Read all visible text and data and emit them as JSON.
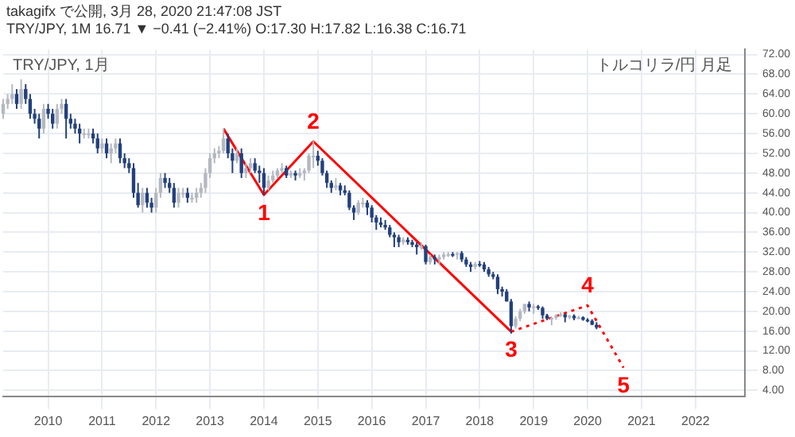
{
  "chart_data": {
    "type": "candlestick",
    "title": "takagifx で公開, 3月 28, 2020 21:47:08 JST",
    "subtitle": "TRY/JPY, 1M 16.71 ▼ −0.41 (−2.41%) O:17.30 H:17.82 L:16.38 C:16.71",
    "x": [
      "2009-03",
      "2009-04",
      "2009-05",
      "2009-06",
      "2009-07",
      "2009-08",
      "2009-09",
      "2009-10",
      "2009-11",
      "2009-12",
      "2010-01",
      "2010-02",
      "2010-03",
      "2010-04",
      "2010-05",
      "2010-06",
      "2010-07",
      "2010-08",
      "2010-09",
      "2010-10",
      "2010-11",
      "2010-12",
      "2011-01",
      "2011-02",
      "2011-03",
      "2011-04",
      "2011-05",
      "2011-06",
      "2011-07",
      "2011-08",
      "2011-09",
      "2011-10",
      "2011-11",
      "2011-12",
      "2012-01",
      "2012-02",
      "2012-03",
      "2012-04",
      "2012-05",
      "2012-06",
      "2012-07",
      "2012-08",
      "2012-09",
      "2012-10",
      "2012-11",
      "2012-12",
      "2013-01",
      "2013-02",
      "2013-03",
      "2013-04",
      "2013-05",
      "2013-06",
      "2013-07",
      "2013-08",
      "2013-09",
      "2013-10",
      "2013-11",
      "2013-12",
      "2014-01",
      "2014-02",
      "2014-03",
      "2014-04",
      "2014-05",
      "2014-06",
      "2014-07",
      "2014-08",
      "2014-09",
      "2014-10",
      "2014-11",
      "2014-12",
      "2015-01",
      "2015-02",
      "2015-03",
      "2015-04",
      "2015-05",
      "2015-06",
      "2015-07",
      "2015-08",
      "2015-09",
      "2015-10",
      "2015-11",
      "2015-12",
      "2016-01",
      "2016-02",
      "2016-03",
      "2016-04",
      "2016-05",
      "2016-06",
      "2016-07",
      "2016-08",
      "2016-09",
      "2016-10",
      "2016-11",
      "2016-12",
      "2017-01",
      "2017-02",
      "2017-03",
      "2017-04",
      "2017-05",
      "2017-06",
      "2017-07",
      "2017-08",
      "2017-09",
      "2017-10",
      "2017-11",
      "2017-12",
      "2018-01",
      "2018-02",
      "2018-03",
      "2018-04",
      "2018-05",
      "2018-06",
      "2018-07",
      "2018-08",
      "2018-09",
      "2018-10",
      "2018-11",
      "2018-12",
      "2019-01",
      "2019-02",
      "2019-03",
      "2019-04",
      "2019-05",
      "2019-06",
      "2019-07",
      "2019-08",
      "2019-09",
      "2019-10",
      "2019-11",
      "2019-12",
      "2020-01",
      "2020-02",
      "2020-03"
    ],
    "ohlc": [
      [
        60,
        63,
        59,
        62
      ],
      [
        62,
        64,
        61,
        63
      ],
      [
        63,
        66,
        62,
        64
      ],
      [
        64,
        65,
        61,
        62
      ],
      [
        62,
        67,
        61,
        65
      ],
      [
        65,
        66,
        62,
        63
      ],
      [
        63,
        64,
        59,
        60
      ],
      [
        60,
        61,
        58,
        59
      ],
      [
        59,
        60,
        55,
        57
      ],
      [
        57,
        62,
        56,
        61
      ],
      [
        61,
        62,
        59,
        60
      ],
      [
        60,
        61,
        57,
        58
      ],
      [
        58,
        62,
        57,
        61
      ],
      [
        61,
        63,
        60,
        62
      ],
      [
        62,
        63,
        55,
        59
      ],
      [
        59,
        60,
        57,
        58
      ],
      [
        58,
        59,
        56,
        57
      ],
      [
        57,
        58,
        54,
        56
      ],
      [
        56,
        57,
        55,
        56
      ],
      [
        56,
        57,
        55,
        56
      ],
      [
        56,
        57,
        54,
        55
      ],
      [
        55,
        56,
        52,
        53
      ],
      [
        53,
        55,
        52,
        54
      ],
      [
        54,
        55,
        51,
        52
      ],
      [
        52,
        54,
        50,
        53
      ],
      [
        53,
        55,
        52,
        54
      ],
      [
        54,
        55,
        50,
        51
      ],
      [
        51,
        52,
        49,
        50
      ],
      [
        50,
        51,
        48,
        49
      ],
      [
        49,
        50,
        43,
        44
      ],
      [
        44,
        46,
        41,
        41.5
      ],
      [
        41.5,
        45,
        40,
        44
      ],
      [
        44,
        45,
        41,
        42
      ],
      [
        42,
        43,
        40,
        41
      ],
      [
        41,
        45,
        40,
        44
      ],
      [
        44,
        48,
        43,
        47
      ],
      [
        47,
        48,
        45,
        46
      ],
      [
        46,
        47,
        44,
        45
      ],
      [
        45,
        46,
        41,
        42
      ],
      [
        42,
        45,
        41,
        44
      ],
      [
        44,
        45,
        43,
        44
      ],
      [
        44,
        45,
        42,
        43
      ],
      [
        43,
        44,
        42,
        43
      ],
      [
        43,
        45,
        42,
        44
      ],
      [
        44,
        46,
        43,
        45
      ],
      [
        45,
        49,
        44,
        48
      ],
      [
        48,
        52,
        47,
        51
      ],
      [
        51,
        53,
        50,
        52
      ],
      [
        52,
        53.5,
        51,
        52.5
      ],
      [
        52.5,
        57,
        52,
        55
      ],
      [
        55,
        56,
        51,
        52
      ],
      [
        52,
        53,
        48,
        50.5
      ],
      [
        50.5,
        53,
        50,
        52
      ],
      [
        52,
        53,
        47,
        48
      ],
      [
        48,
        50,
        47,
        49
      ],
      [
        49,
        51,
        48,
        50
      ],
      [
        50,
        51,
        48,
        48.5
      ],
      [
        48.5,
        49.5,
        46,
        48
      ],
      [
        48,
        49,
        43.5,
        45
      ],
      [
        45,
        47.5,
        44.5,
        46.5
      ],
      [
        46.5,
        48.5,
        46,
        47.5
      ],
      [
        47.5,
        49,
        47,
        48.5
      ],
      [
        48.5,
        50,
        48,
        49
      ],
      [
        49,
        49.5,
        47,
        47.5
      ],
      [
        47.5,
        48.5,
        47,
        48
      ],
      [
        48,
        48.5,
        46.5,
        47.5
      ],
      [
        47.5,
        49,
        47,
        48
      ],
      [
        48,
        49,
        46.5,
        48.5
      ],
      [
        48.5,
        52,
        48,
        51.5
      ],
      [
        51.5,
        54.5,
        49,
        51.5
      ],
      [
        51.5,
        52.5,
        49.5,
        50.5
      ],
      [
        50.5,
        51,
        47.5,
        48
      ],
      [
        48,
        48.5,
        45,
        46
      ],
      [
        46,
        46.5,
        44,
        45
      ],
      [
        45,
        47,
        44.5,
        45.5
      ],
      [
        45.5,
        46,
        43.5,
        44.5
      ],
      [
        44.5,
        45.5,
        43.5,
        44
      ],
      [
        44,
        44.5,
        40.5,
        41
      ],
      [
        41,
        41.5,
        38.5,
        40
      ],
      [
        40,
        42.5,
        39.5,
        42
      ],
      [
        42,
        43,
        41,
        42
      ],
      [
        42,
        42.5,
        39.5,
        41
      ],
      [
        41,
        41.5,
        38,
        39
      ],
      [
        39,
        39.5,
        36.5,
        38
      ],
      [
        38,
        39,
        37,
        37.5
      ],
      [
        37.5,
        38.5,
        36.5,
        37
      ],
      [
        37,
        37.5,
        35,
        35.5
      ],
      [
        35.5,
        36,
        33,
        35
      ],
      [
        35,
        35.5,
        33,
        34
      ],
      [
        34,
        35,
        33.5,
        34.5
      ],
      [
        34.5,
        35,
        33.5,
        34
      ],
      [
        34,
        34.5,
        33,
        33.5
      ],
      [
        33.5,
        34,
        31.5,
        33
      ],
      [
        33,
        34,
        32.5,
        33.2
      ],
      [
        33.2,
        33.5,
        29.5,
        30
      ],
      [
        30,
        31.5,
        29.5,
        31
      ],
      [
        31,
        31.5,
        29.5,
        30.5
      ],
      [
        30.5,
        31.5,
        29.5,
        31
      ],
      [
        31,
        32,
        30.5,
        31.5
      ],
      [
        31.5,
        32,
        31,
        31.6
      ],
      [
        31.6,
        32,
        31,
        31.5
      ],
      [
        31.5,
        32,
        30.5,
        31.8
      ],
      [
        31.8,
        32.2,
        30,
        30.5
      ],
      [
        30.5,
        31,
        29,
        29.5
      ],
      [
        29.5,
        30,
        28,
        29
      ],
      [
        29,
        30,
        28.5,
        29.6
      ],
      [
        29.6,
        30.2,
        29,
        29.5
      ],
      [
        29.5,
        30,
        28,
        28.5
      ],
      [
        28.5,
        29,
        27,
        27.5
      ],
      [
        27.5,
        28,
        26.5,
        27
      ],
      [
        27,
        27.5,
        23.5,
        24.5
      ],
      [
        24.5,
        25,
        23,
        24
      ],
      [
        24,
        24.5,
        22,
        22
      ],
      [
        22,
        22.5,
        15.5,
        17
      ],
      [
        17,
        19,
        16.5,
        18.5
      ],
      [
        18.5,
        20.5,
        18,
        20
      ],
      [
        20,
        21.5,
        19.5,
        21.5
      ],
      [
        21.5,
        22,
        20,
        20.8
      ],
      [
        20.8,
        21.5,
        19.5,
        21
      ],
      [
        21,
        21.3,
        20.3,
        20.7
      ],
      [
        20.7,
        21,
        18.5,
        19.2
      ],
      [
        19.2,
        19.5,
        18.2,
        18.5
      ],
      [
        18.5,
        18.8,
        17.2,
        18.7
      ],
      [
        18.7,
        19.4,
        18.3,
        19.2
      ],
      [
        19.2,
        19.8,
        18.9,
        19.4
      ],
      [
        19.4,
        19.5,
        17.8,
        18.8
      ],
      [
        18.8,
        19.3,
        18.4,
        19.1
      ],
      [
        19.1,
        19.4,
        18.2,
        18.6
      ],
      [
        18.6,
        19.1,
        18.4,
        18.8
      ],
      [
        18.8,
        19,
        18.1,
        18.3
      ],
      [
        18.3,
        18.6,
        17.8,
        18.1
      ],
      [
        18.1,
        18.4,
        17.2,
        17.3
      ],
      [
        17.3,
        17.82,
        16.38,
        16.71
      ]
    ],
    "series": [
      {
        "type": "line",
        "color": "#ff0000",
        "x": [
          "2013-04",
          "2014-01",
          "2014-12",
          "2018-08"
        ],
        "values": [
          57,
          43.6,
          54.4,
          15.9
        ]
      },
      {
        "type": "line",
        "color": "#ff0000",
        "line_style": "dotted",
        "x": [
          "2018-08",
          "2020-01",
          "2020-09"
        ],
        "values": [
          15.9,
          21.2,
          8.6
        ]
      }
    ],
    "annotations": [
      "TRY/JPY, 1月",
      "トルコリラ/円 月足",
      {
        "text": "1",
        "x": "2014-01",
        "y": 43.6
      },
      {
        "text": "2",
        "x": "2014-12",
        "y": 54.4
      },
      {
        "text": "3",
        "x": "2018-08",
        "y": 15.9
      },
      {
        "text": "4",
        "x": "2020-01",
        "y": 21.2
      },
      {
        "text": "5",
        "x": "2020-09",
        "y": 8.6
      }
    ],
    "xlim": [
      "2009-03",
      "2022-12"
    ],
    "xticks": [
      "2010",
      "2011",
      "2012",
      "2013",
      "2014",
      "2015",
      "2016",
      "2017",
      "2018",
      "2019",
      "2020",
      "2021",
      "2022"
    ],
    "ylim": [
      2.8,
      73
    ],
    "yticks": [
      {
        "value": 4,
        "label": "4.00"
      },
      {
        "value": 8,
        "label": "8.00"
      },
      {
        "value": 12,
        "label": "12.00"
      },
      {
        "value": 16,
        "label": "16.00"
      },
      {
        "value": 20,
        "label": "20.00"
      },
      {
        "value": 24,
        "label": "24.00"
      },
      {
        "value": 28,
        "label": "28.00"
      },
      {
        "value": 32,
        "label": "32.00"
      },
      {
        "value": 36,
        "label": "36.00"
      },
      {
        "value": 40,
        "label": "40.00"
      },
      {
        "value": 44,
        "label": "44.00"
      },
      {
        "value": 48,
        "label": "48.00"
      },
      {
        "value": 52,
        "label": "52.00"
      },
      {
        "value": 56,
        "label": "56.00"
      },
      {
        "value": 60,
        "label": "60.00"
      },
      {
        "value": 64,
        "label": "64.00"
      },
      {
        "value": 68,
        "label": "68.00"
      },
      {
        "value": 72,
        "label": "72.00"
      }
    ],
    "grid": true,
    "legend": false
  }
}
